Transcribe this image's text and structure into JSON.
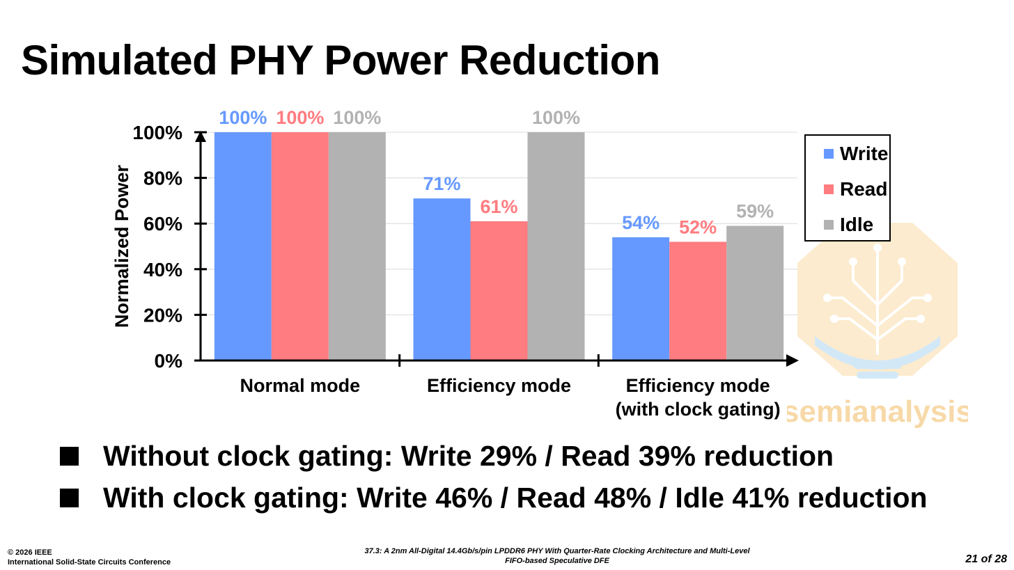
{
  "slide": {
    "title": "Simulated PHY Power Reduction",
    "bullets": [
      "Without clock gating: Write 29% / Read 39% reduction",
      "With clock gating: Write 46% / Read 48% / Idle 41% reduction"
    ],
    "footer": {
      "copyright": "© 2026 IEEE",
      "conference": "International Solid-State Circuits Conference",
      "paper_line1": "37.3: A 2nm All-Digital 14.4Gb/s/pin LPDDR6 PHY With Quarter-Rate Clocking Architecture and Multi-Level",
      "paper_line2": "FIFO-based Speculative DFE",
      "page": "21 of 28"
    },
    "watermark": {
      "text": "semianalysis",
      "color": "#f7d9a8"
    }
  },
  "chart_data": {
    "type": "bar",
    "title": "",
    "xlabel": "",
    "ylabel": "Normalized Power",
    "ylim": [
      0,
      100
    ],
    "yticks": [
      0,
      20,
      40,
      60,
      80,
      100
    ],
    "ytick_labels": [
      "0%",
      "20%",
      "40%",
      "60%",
      "80%",
      "100%"
    ],
    "grid": true,
    "legend_position": "right",
    "categories": [
      [
        "Normal mode"
      ],
      [
        "Efficiency mode"
      ],
      [
        "Efficiency mode",
        "(with clock gating)"
      ]
    ],
    "series": [
      {
        "name": "Write",
        "color": "#6699ff",
        "values": [
          100,
          71,
          54
        ],
        "labels": [
          "100%",
          "71%",
          "54%"
        ]
      },
      {
        "name": "Read",
        "color": "#ff7c80",
        "values": [
          100,
          61,
          52
        ],
        "labels": [
          "100%",
          "61%",
          "52%"
        ]
      },
      {
        "name": "Idle",
        "color": "#b2b2b2",
        "values": [
          100,
          100,
          59
        ],
        "labels": [
          "100%",
          "100%",
          "59%"
        ]
      }
    ]
  }
}
